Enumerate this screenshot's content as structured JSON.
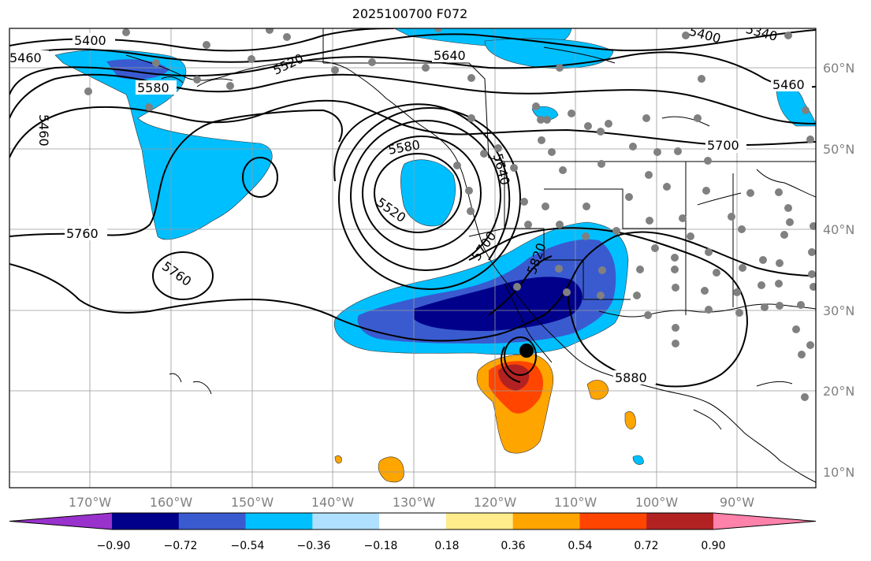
{
  "title": "2025100700 F072",
  "axes": {
    "lon_labels": [
      "170°W",
      "160°W",
      "150°W",
      "140°W",
      "130°W",
      "120°W",
      "110°W",
      "100°W",
      "90°W"
    ],
    "lat_labels": [
      "60°N",
      "50°N",
      "40°N",
      "30°N",
      "20°N",
      "10°N"
    ]
  },
  "colorbar": {
    "colors": [
      "#9932cc",
      "#00008b",
      "#3a5bd0",
      "#00bfff",
      "#b0e0ff",
      "#ffffff",
      "#ffec8b",
      "#ffa500",
      "#ff4500",
      "#b22222",
      "#ff82ab"
    ],
    "tick_labels": [
      "−0.90",
      "−0.72",
      "−0.54",
      "−0.36",
      "−0.18",
      "0.18",
      "0.36",
      "0.54",
      "0.72",
      "0.90"
    ]
  },
  "contour_labels": [
    "5400",
    "5460",
    "5520",
    "5580",
    "5640",
    "5700",
    "5760",
    "5820",
    "5880",
    "5340",
    "5460",
    "5580",
    "5640",
    "5700",
    "5760",
    "5520",
    "5460"
  ]
}
